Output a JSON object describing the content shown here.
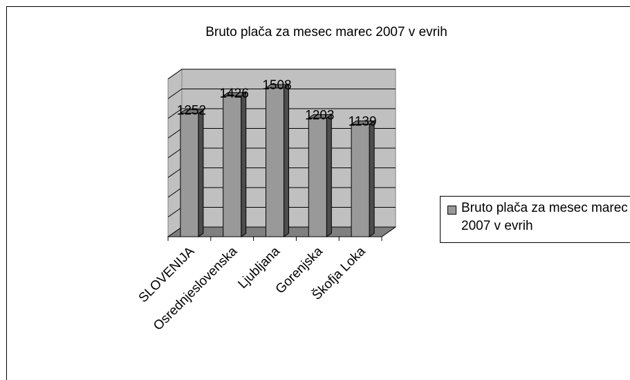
{
  "chart_data": {
    "type": "bar",
    "title": "Bruto plača za mesec marec 2007 v evrih",
    "categories": [
      "SLOVENIJA",
      "Osrednjeslovenska",
      "Ljubljana",
      "Gorenjska",
      "Škofja Loka"
    ],
    "series": [
      {
        "name": "Bruto plača za mesec marec 2007 v evrih",
        "color": "#999999",
        "values": [
          1252,
          1426,
          1508,
          1203,
          1139
        ]
      }
    ],
    "ylim": [
      0,
      1600
    ],
    "yticks": [
      0,
      200,
      400,
      600,
      800,
      1000,
      1200,
      1400,
      1600
    ],
    "grid": true,
    "legend": "right"
  }
}
